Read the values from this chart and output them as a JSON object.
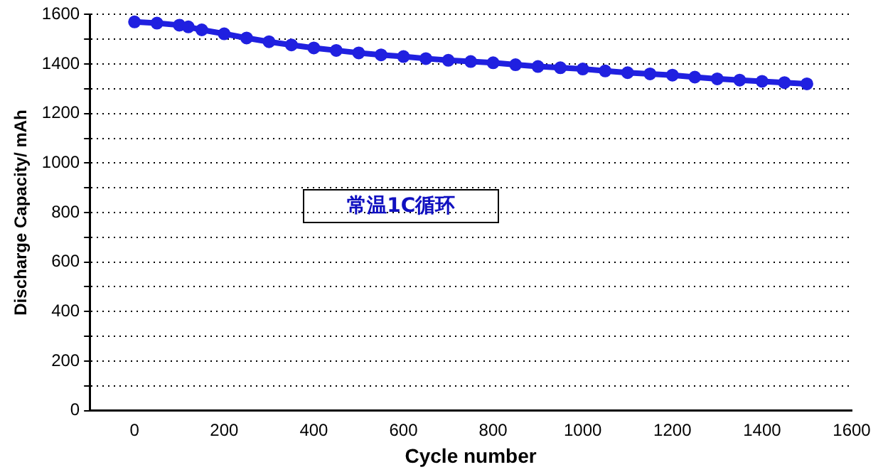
{
  "chart_data": {
    "type": "line",
    "xlabel": "Cycle number",
    "ylabel": "Discharge Capacity/ mAh",
    "annotations": [
      "常温1C循环"
    ],
    "x": [
      0,
      50,
      100,
      120,
      150,
      200,
      250,
      300,
      350,
      400,
      450,
      500,
      550,
      600,
      650,
      700,
      750,
      800,
      850,
      900,
      950,
      1000,
      1050,
      1100,
      1150,
      1200,
      1250,
      1300,
      1350,
      1400,
      1450,
      1500
    ],
    "series": [
      {
        "color": "#2020e0",
        "values": [
          1570,
          1565,
          1557,
          1550,
          1538,
          1522,
          1505,
          1490,
          1477,
          1465,
          1455,
          1445,
          1437,
          1430,
          1422,
          1415,
          1410,
          1405,
          1397,
          1390,
          1385,
          1380,
          1372,
          1365,
          1360,
          1355,
          1347,
          1340,
          1335,
          1330,
          1325,
          1320
        ]
      }
    ],
    "xlim": [
      -100,
      1600
    ],
    "xticks": [
      0,
      200,
      400,
      600,
      800,
      1000,
      1200,
      1400,
      1600
    ],
    "ylim": [
      0,
      1600
    ],
    "yticks": [
      0,
      {
        "value": 100,
        "label": null
      },
      200,
      {
        "value": 300,
        "label": null
      },
      400,
      {
        "value": 500,
        "label": null
      },
      600,
      {
        "value": 700,
        "label": null
      },
      800,
      {
        "value": 900,
        "label": null
      },
      1000,
      {
        "value": 1100,
        "label": null
      },
      1200,
      {
        "value": 1300,
        "label": null
      },
      1400,
      {
        "value": 1500,
        "label": null
      },
      1600
    ],
    "grid": "y",
    "legend": false,
    "marker": "circle",
    "line_style": "solid"
  }
}
